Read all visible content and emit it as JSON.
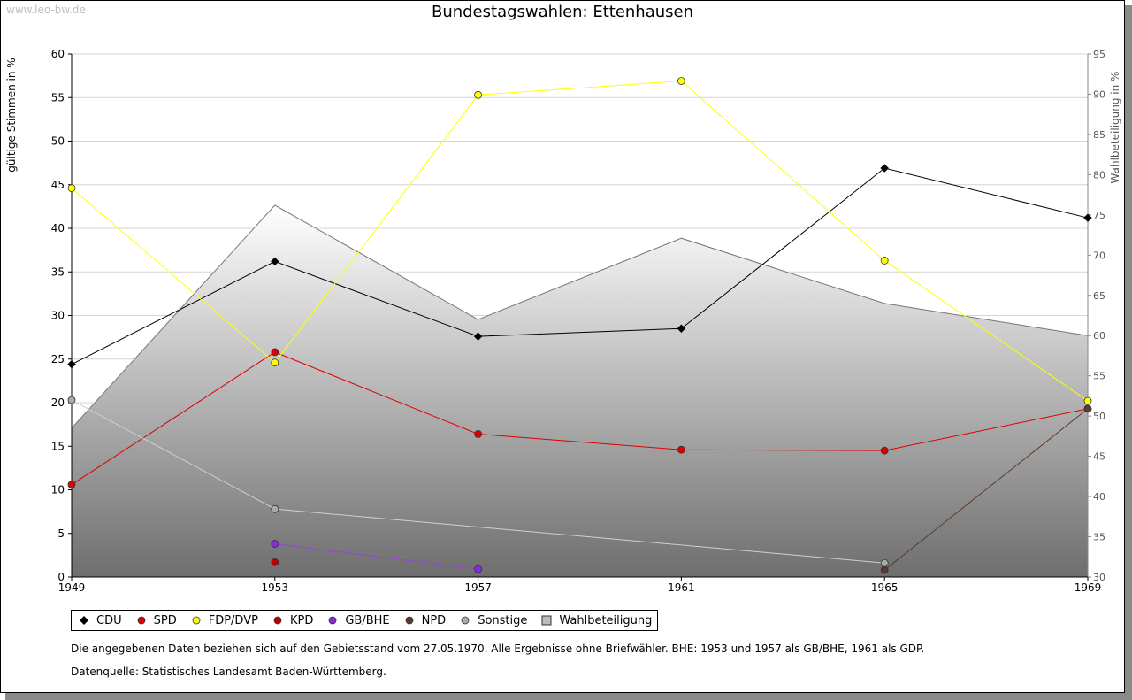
{
  "watermark": "www.leo-bw.de",
  "notes": {
    "line1": "Die angegebenen Daten beziehen sich auf den Gebietsstand vom 27.05.1970. Alle Ergebnisse ohne Briefwähler. BHE: 1953 und 1957 als GB/BHE, 1961 als GDP.",
    "line2": "Datenquelle: Statistisches Landesamt Baden-Württemberg."
  },
  "chart_data": {
    "type": "line",
    "title": "Bundestagswahlen: Ettenhausen",
    "xlabel": "",
    "ylabel": "gültige Stimmen in %",
    "y2label": "Wahlbeteiligung in %",
    "categories": [
      "1949",
      "1953",
      "1957",
      "1961",
      "1965",
      "1969"
    ],
    "ylim": [
      0,
      60
    ],
    "y_ticks": [
      "0",
      "5",
      "10",
      "15",
      "20",
      "25",
      "30",
      "35",
      "40",
      "45",
      "50",
      "55",
      "60"
    ],
    "y2lim": [
      30,
      95
    ],
    "y2_ticks": [
      "30",
      "35",
      "40",
      "45",
      "50",
      "55",
      "60",
      "65",
      "70",
      "75",
      "80",
      "85",
      "90",
      "95"
    ],
    "grid": true,
    "legend_position": "bottom",
    "series": [
      {
        "name": "CDU",
        "color": "#000000",
        "values": [
          24.4,
          36.2,
          27.6,
          28.5,
          46.9,
          41.2
        ]
      },
      {
        "name": "SPD",
        "color": "#e00000",
        "values": [
          10.6,
          25.8,
          16.4,
          14.6,
          14.5,
          19.3
        ]
      },
      {
        "name": "FDP/DVP",
        "color": "#ffff00",
        "values": [
          44.6,
          24.6,
          55.3,
          56.9,
          36.3,
          20.2
        ]
      },
      {
        "name": "KPD",
        "color": "#c00000",
        "values": [
          null,
          1.7,
          null,
          null,
          null,
          null
        ]
      },
      {
        "name": "GB/BHE",
        "color": "#8a2be2",
        "values": [
          null,
          3.8,
          0.9,
          null,
          null,
          null
        ]
      },
      {
        "name": "NPD",
        "color": "#5a3a2a",
        "values": [
          null,
          null,
          null,
          null,
          0.8,
          19.3
        ]
      },
      {
        "name": "Sonstige",
        "color": "#aaaaaa",
        "values": [
          20.3,
          7.8,
          null,
          null,
          1.6,
          null
        ]
      }
    ],
    "turnout": {
      "name": "Wahlbeteiligung",
      "values": [
        48.5,
        76.2,
        62.0,
        72.1,
        64.0,
        60.0
      ]
    }
  }
}
